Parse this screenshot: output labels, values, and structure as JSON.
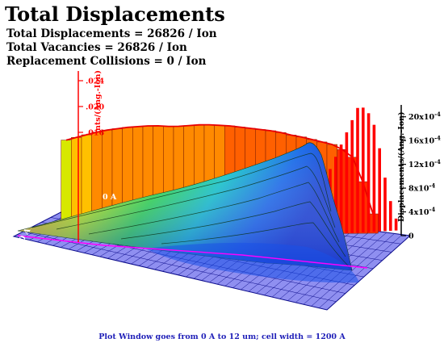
{
  "title": "Total Displacements",
  "stats": [
    "Total Displacements = 26826 / Ion",
    "Total Vacancies = 26826 / Ion",
    "Replacement Collisions = 0 / Ion"
  ],
  "footer": "Plot Window goes from 0 A to 12 um;  cell width = 1200 A",
  "colors": {
    "back_axis": "#ff0000",
    "right_axis": "#000000",
    "floor": "#8f8ff0",
    "grid": "#0a0a8a",
    "footer": "#1f1fb8"
  },
  "chart_data": {
    "type": "bar",
    "projection": "3d",
    "title": "Total Displacements",
    "left_axis": {
      "label": "nts/(Ang.-Ion)",
      "ticks": [
        ".016",
        ".020",
        ".024"
      ],
      "tick_values": [
        0.016,
        0.02,
        0.024
      ]
    },
    "right_axis": {
      "label": "Displacements/(Ang.-Ion)",
      "ticks": [
        "0",
        "4x10",
        "8x10",
        "12x10",
        "16x10",
        "20x10"
      ],
      "tick_values": [
        0,
        0.0004,
        0.0008,
        0.0012,
        0.0016,
        0.002
      ],
      "exponent": "-4",
      "ylim": [
        0,
        0.0022
      ]
    },
    "floor_labels": [
      "0 A",
      "0 A"
    ],
    "back_series": {
      "name": "",
      "values": [
        0.0148,
        0.0152,
        0.0156,
        0.016,
        0.0163,
        0.0165,
        0.0167,
        0.0168,
        0.0169,
        0.0169,
        0.0168,
        0.0168,
        0.0169,
        0.017,
        0.017,
        0.0169,
        0.0168,
        0.0166,
        0.0164,
        0.0162,
        0.016,
        0.0157,
        0.0153,
        0.015,
        0.0146,
        0.0142,
        0.0138,
        0.013,
        0.0118,
        0.008,
        0.003
      ]
    },
    "side_series": {
      "name": "",
      "values": [
        0.0003,
        0.0005,
        0.0007,
        0.0009,
        0.0011,
        0.0013,
        0.0015,
        0.0017,
        0.0019,
        0.0021,
        0.0021,
        0.002,
        0.0018,
        0.0014,
        0.0009,
        0.0005,
        0.0002
      ]
    }
  }
}
